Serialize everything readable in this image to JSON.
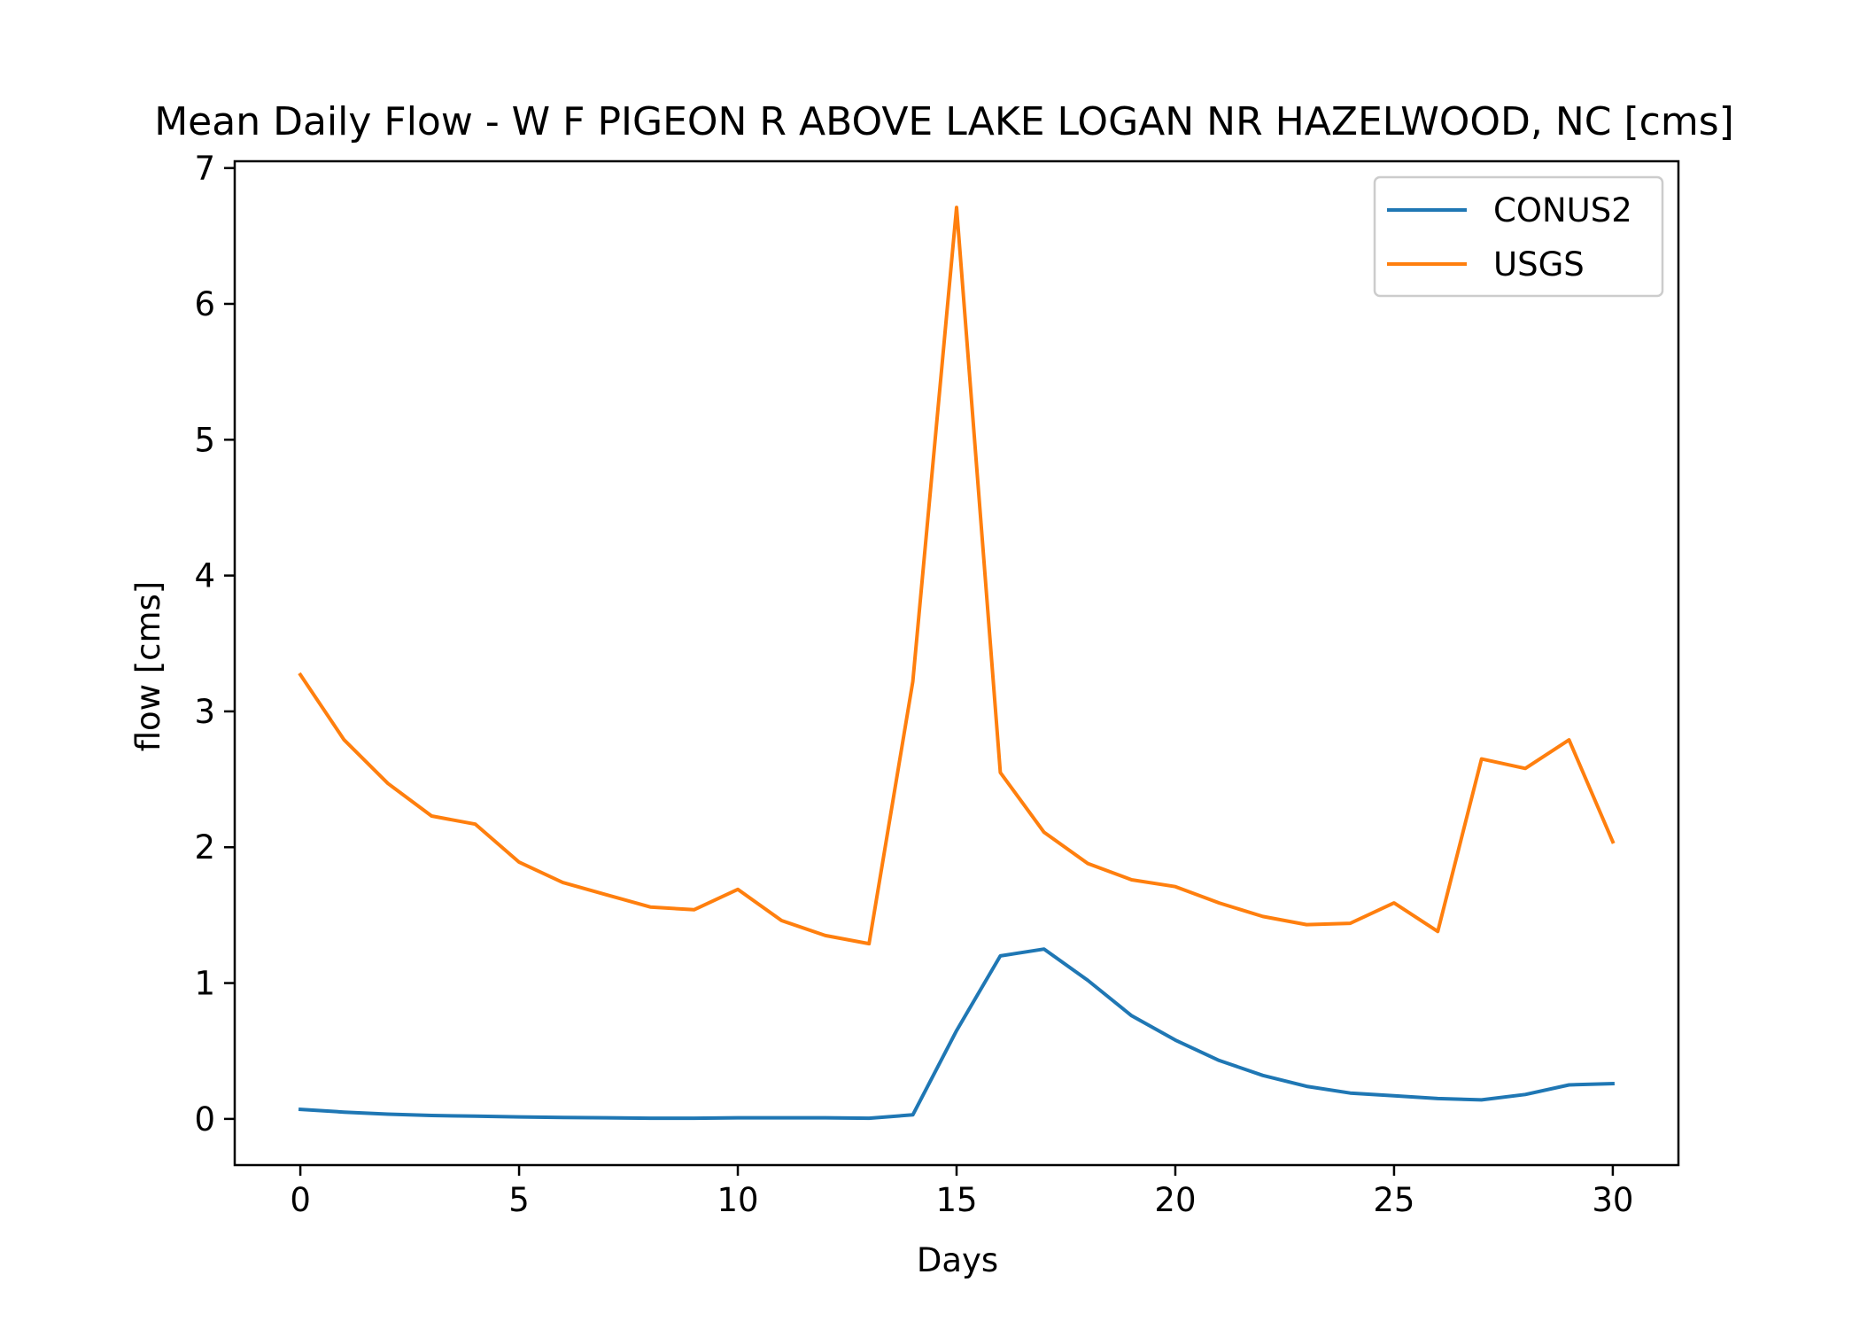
{
  "chart_data": {
    "type": "line",
    "title": "Mean Daily Flow - W F PIGEON R ABOVE LAKE LOGAN NR HAZELWOOD, NC [cms]",
    "xlabel": "Days",
    "ylabel": "flow [cms]",
    "xlim": [
      -1.5,
      31.5
    ],
    "ylim": [
      -0.34,
      7.05
    ],
    "xticks": [
      0,
      5,
      10,
      15,
      20,
      25,
      30
    ],
    "yticks": [
      0,
      1,
      2,
      3,
      4,
      5,
      6,
      7
    ],
    "grid": false,
    "legend_position": "top-right",
    "x": [
      0,
      1,
      2,
      3,
      4,
      5,
      6,
      7,
      8,
      9,
      10,
      11,
      12,
      13,
      14,
      15,
      16,
      17,
      18,
      19,
      20,
      21,
      22,
      23,
      24,
      25,
      26,
      27,
      28,
      29,
      30
    ],
    "series": [
      {
        "name": "CONUS2",
        "color": "#1f77b4",
        "values": [
          0.07,
          0.05,
          0.035,
          0.025,
          0.02,
          0.015,
          0.01,
          0.008,
          0.005,
          0.005,
          0.008,
          0.008,
          0.008,
          0.005,
          0.03,
          0.65,
          1.2,
          1.25,
          1.02,
          0.76,
          0.58,
          0.43,
          0.32,
          0.24,
          0.19,
          0.17,
          0.15,
          0.14,
          0.18,
          0.25,
          0.26
        ]
      },
      {
        "name": "USGS",
        "color": "#ff7f0e",
        "values": [
          3.27,
          2.79,
          2.47,
          2.23,
          2.17,
          1.89,
          1.74,
          1.65,
          1.56,
          1.54,
          1.69,
          1.46,
          1.35,
          1.29,
          3.22,
          6.71,
          2.55,
          2.11,
          1.88,
          1.76,
          1.71,
          1.59,
          1.49,
          1.43,
          1.44,
          1.59,
          1.38,
          2.65,
          2.58,
          2.79,
          2.04
        ]
      }
    ]
  }
}
